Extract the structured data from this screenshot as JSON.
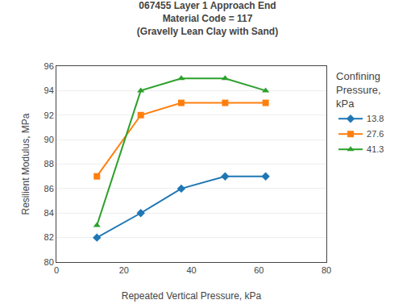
{
  "chart_data": {
    "type": "line",
    "title": "067455 Layer 1 Approach End\nMaterial Code = 117\n(Gravelly Lean Clay with Sand)",
    "x_label": "Repeated Vertical Pressure, kPa",
    "y_label": "Resilient Modulus, MPa",
    "legend_title": "Confining\nPressure,\nkPa",
    "xlim": [
      0,
      80
    ],
    "ylim": [
      80,
      96
    ],
    "xticks": [
      0,
      20,
      40,
      60,
      80
    ],
    "yticks": [
      80,
      82,
      84,
      86,
      88,
      90,
      92,
      94,
      96
    ],
    "grid": "y",
    "legend": "right",
    "series": [
      {
        "name": "13.8",
        "marker": "diamond",
        "x": [
          12,
          25,
          37,
          50,
          62
        ],
        "values": [
          82.0,
          84.0,
          86.0,
          87.0,
          87.0
        ]
      },
      {
        "name": "27.6",
        "marker": "square",
        "x": [
          12,
          25,
          37,
          50,
          62
        ],
        "values": [
          87.0,
          92.0,
          93.0,
          93.0,
          93.0
        ]
      },
      {
        "name": "41.3",
        "marker": "triangle",
        "x": [
          12,
          25,
          37,
          50,
          62
        ],
        "values": [
          83.0,
          94.0,
          95.0,
          95.0,
          94.0
        ]
      }
    ]
  }
}
